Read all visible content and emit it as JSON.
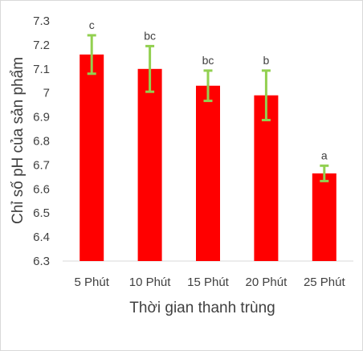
{
  "chart_data": {
    "type": "bar",
    "title": "",
    "xlabel": "Thời gian thanh trùng",
    "ylabel": "Chỉ số pH của sản phẩm",
    "ylim": [
      6.3,
      7.3
    ],
    "yticks": [
      "6.3",
      "6.4",
      "6.5",
      "6.6",
      "6.7",
      "6.8",
      "6.9",
      "7",
      "7.1",
      "7.2",
      "7.3"
    ],
    "ytick_values": [
      6.3,
      6.4,
      6.5,
      6.6,
      6.7,
      6.8,
      6.9,
      7.0,
      7.1,
      7.2,
      7.3
    ],
    "categories": [
      "5 Phút",
      "10 Phút",
      "15 Phút",
      "20 Phút",
      "25 Phút"
    ],
    "values": [
      7.16,
      7.1,
      7.03,
      6.99,
      6.665
    ],
    "error": [
      0.08,
      0.095,
      0.063,
      0.103,
      0.032
    ],
    "significance_labels": [
      "c",
      "bc",
      "bc",
      "b",
      "a"
    ],
    "bar_color": "#ff0000",
    "error_bar_color": "#92d050",
    "grid": false,
    "legend": "none"
  }
}
